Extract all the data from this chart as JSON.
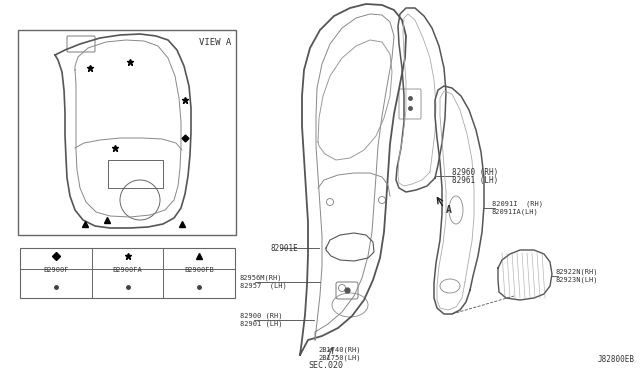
{
  "bg_color": "#ffffff",
  "line_color": "#555555",
  "text_color": "#333333",
  "labels": {
    "sec_020": "SEC.020",
    "view_a": "VIEW A",
    "B2960RH": "82960 (RH)",
    "B2961LH": "82961 (LH)",
    "B2901E": "82901E",
    "B2956MRH": "82956M(RH)",
    "B2957LH": "82957  (LH)",
    "B2900RH": "82900 (RH)",
    "B2901LH": "82901 (LH)",
    "B1740RH": "2B1740(RH)",
    "B1750LH": "2B1750(LH)",
    "B20911RH": "82091I  (RH)",
    "B20911ALH": "82091IA(LH)",
    "B2922NRH": "82922N(RH)",
    "B2923NLH": "82923N(LH)",
    "A_label": "A",
    "leg1": "B2900F",
    "leg2": "B2900FA",
    "leg3": "B2900FB",
    "diagram_id": "J82800EB"
  }
}
